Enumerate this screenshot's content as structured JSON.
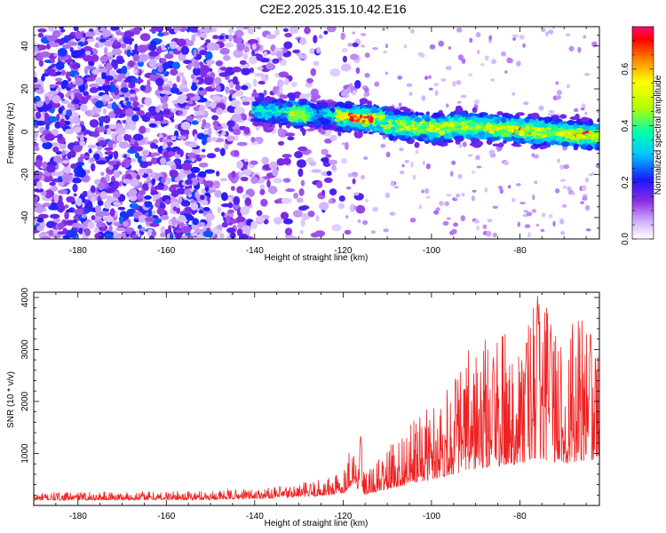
{
  "title": "C2E2.2025.315.10.42.E16",
  "chart_data": [
    {
      "type": "heatmap",
      "title": "C2E2.2025.315.10.42.E16",
      "xlabel": "Height of straight line (km)",
      "ylabel": "Frequency (Hz)",
      "xlim": [
        -190,
        -62
      ],
      "ylim": [
        -50,
        49
      ],
      "xticks": [
        -180,
        -160,
        -140,
        -120,
        -100,
        -80
      ],
      "yticks": [
        -40,
        -20,
        0,
        20,
        40
      ],
      "colorbar": {
        "label": "Normalized spectral amplitude",
        "range": [
          0,
          0.75
        ],
        "ticks": [
          0.0,
          0.2,
          0.4,
          0.6
        ]
      },
      "signal_band": {
        "x_start": -140,
        "x_end": -62,
        "freq_at_start": 10,
        "freq_at_end": -2,
        "peak_amplitude": 0.75,
        "peak_heights": [
          -116,
          -80,
          -67
        ]
      },
      "noise_region": {
        "x_start": -190,
        "x_end": -120,
        "amplitude_range": [
          0.05,
          0.25
        ]
      }
    },
    {
      "type": "line",
      "xlabel": "Height of straight line (km)",
      "ylabel": "SNR (10 * v/v)",
      "xlim": [
        -190,
        -62
      ],
      "ylim": [
        0,
        4100
      ],
      "xticks": [
        -180,
        -160,
        -140,
        -120,
        -100,
        -80
      ],
      "yticks": [
        1000,
        2000,
        3000,
        4000
      ],
      "color": "#ee2222",
      "profile": [
        {
          "x": -190,
          "base": 100,
          "amp": 150
        },
        {
          "x": -150,
          "base": 110,
          "amp": 180
        },
        {
          "x": -135,
          "base": 140,
          "amp": 220
        },
        {
          "x": -125,
          "base": 180,
          "amp": 330
        },
        {
          "x": -120,
          "base": 230,
          "amp": 450
        },
        {
          "x": -118,
          "base": 400,
          "amp": 950
        },
        {
          "x": -115,
          "base": 200,
          "amp": 400
        },
        {
          "x": -108,
          "base": 350,
          "amp": 950
        },
        {
          "x": -100,
          "base": 500,
          "amp": 1500
        },
        {
          "x": -95,
          "base": 600,
          "amp": 2000
        },
        {
          "x": -90,
          "base": 700,
          "amp": 2500
        },
        {
          "x": -80,
          "base": 800,
          "amp": 2700
        },
        {
          "x": -76,
          "base": 900,
          "amp": 3100
        },
        {
          "x": -70,
          "base": 800,
          "amp": 2700
        },
        {
          "x": -62,
          "base": 900,
          "amp": 2800
        }
      ],
      "peaks": [
        {
          "x": -116,
          "y": 1350
        },
        {
          "x": -86,
          "y": 2900
        },
        {
          "x": -78.5,
          "y": 3200
        },
        {
          "x": -76,
          "y": 4050
        },
        {
          "x": -73,
          "y": 3500
        },
        {
          "x": -64,
          "y": 3400
        }
      ]
    }
  ]
}
